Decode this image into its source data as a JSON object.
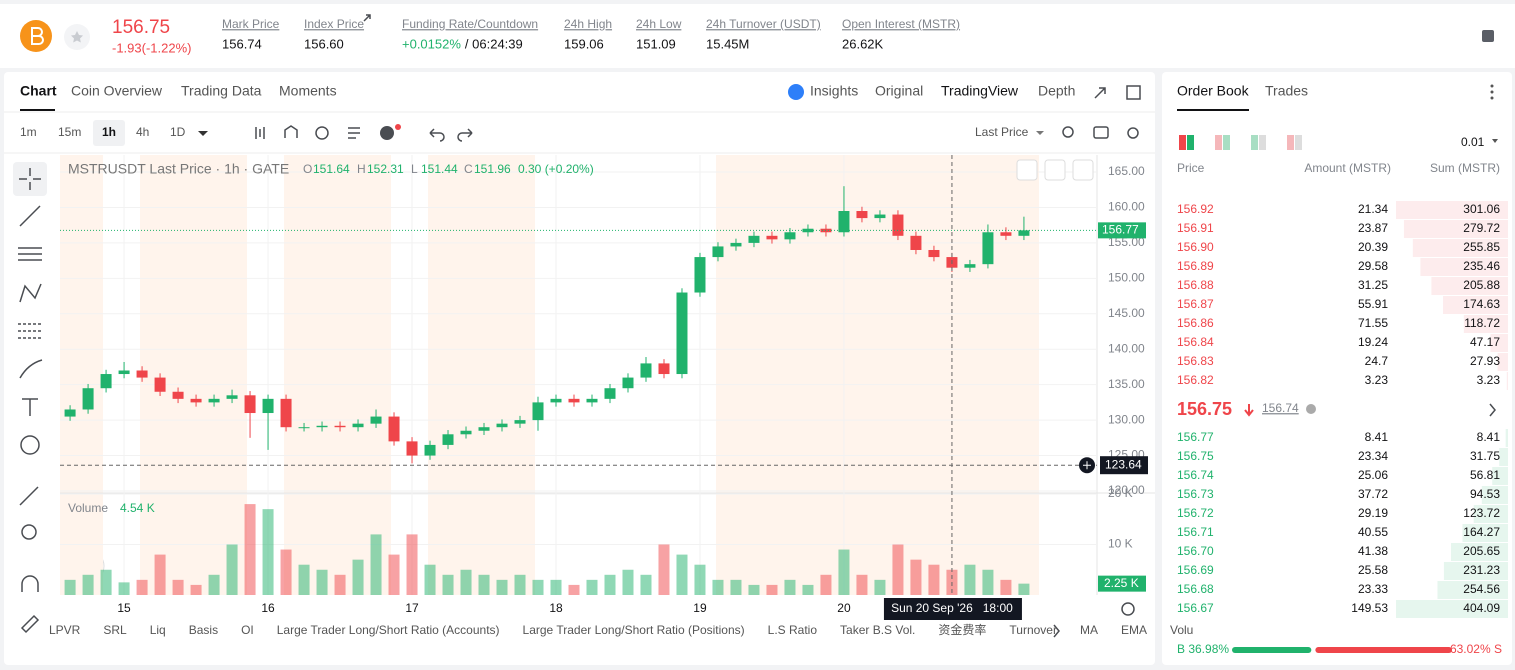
{
  "header": {
    "last_price": "156.75",
    "change": "-1.93(-1.22%)",
    "stats": [
      {
        "label": "Mark Price",
        "value": "156.74"
      },
      {
        "label": "Index Price",
        "value": "156.60"
      },
      {
        "label": "Funding Rate/Countdown",
        "value": "+0.0152%",
        "countdown": "/ 06:24:39"
      },
      {
        "label": "24h High",
        "value": "159.06"
      },
      {
        "label": "24h Low",
        "value": "151.09"
      },
      {
        "label": "24h Turnover (USDT)",
        "value": "15.45M"
      },
      {
        "label": "Open Interest (MSTR)",
        "value": "26.62K"
      }
    ]
  },
  "tabs": [
    "Chart",
    "Coin Overview",
    "Trading Data",
    "Moments"
  ],
  "view_tabs": [
    "Insights",
    "Original",
    "TradingView",
    "Depth"
  ],
  "intervals": [
    "1m",
    "15m",
    "1h",
    "4h",
    "1D"
  ],
  "price_source": "Last Price",
  "indicators": [
    "LPVR",
    "SRL",
    "Liq",
    "Basis",
    "OI",
    "Large Trader Long/Short Ratio (Accounts)",
    "Large Trader Long/Short Ratio (Positions)",
    "L.S Ratio",
    "Taker B.S Vol.",
    "资金费率",
    "Turnover",
    "MA",
    "EMA",
    "Volu"
  ],
  "chart_data": {
    "type": "candlestick",
    "title": "MSTRUSDT Last Price · 1h · GATE",
    "ohlc": [
      {
        "label": "O",
        "value": "151.64"
      },
      {
        "label": "H",
        "value": "152.31"
      },
      {
        "label": "L",
        "value": "151.44"
      },
      {
        "label": "C",
        "value": "151.96"
      }
    ],
    "ohlc_change": "0.30 (+0.20%)",
    "up_color": "#20b26c",
    "down_color": "#ef454a",
    "open": [
      130.5,
      131.5,
      134.5,
      136.5,
      137,
      136,
      134,
      133,
      132.5,
      133,
      133.5,
      131,
      133,
      129,
      129,
      129.2,
      129,
      129.5,
      130.5,
      127,
      125,
      126.5,
      128,
      128.5,
      129,
      129.5,
      130,
      132.5,
      133,
      132.5,
      133,
      134.5,
      136,
      138,
      136.5,
      148,
      153,
      154.5,
      155,
      156,
      155.5,
      156.5,
      157,
      156.5,
      159.5,
      158.5,
      159,
      156,
      154,
      153,
      151.5,
      152,
      156.5,
      156
    ],
    "high": [
      132.1,
      135.1,
      137.1,
      138.2,
      137.6,
      136.6,
      134.6,
      133.6,
      133.6,
      134.3,
      134.1,
      133.6,
      133.6,
      129.6,
      129.8,
      129.8,
      130.1,
      131.5,
      131.1,
      127.6,
      127.1,
      128.6,
      129.1,
      129.6,
      130.1,
      130.6,
      133.3,
      133.6,
      133.6,
      133.6,
      135.1,
      136.6,
      138.9,
      138.6,
      148.6,
      153.6,
      155.1,
      155.6,
      156.6,
      156.6,
      157.1,
      157.6,
      157.6,
      163,
      160.1,
      159.6,
      159.6,
      156.6,
      154.6,
      153.6,
      152.6,
      157.6,
      157.2,
      158.7
    ],
    "low": [
      129.9,
      130.9,
      133.9,
      135.9,
      135.4,
      133.4,
      132.4,
      131.9,
      131.9,
      132.4,
      127.5,
      125.8,
      128.4,
      128.4,
      128.4,
      128.4,
      128.4,
      128.9,
      126.4,
      123.9,
      124.4,
      125.9,
      127.4,
      127.9,
      128.4,
      128.9,
      128.5,
      131.9,
      131.9,
      131.9,
      132.4,
      133.9,
      135.4,
      135.9,
      135.9,
      147.4,
      152.4,
      153.9,
      154.4,
      154.9,
      154.9,
      155.9,
      155.9,
      155.9,
      157.9,
      157.9,
      155.4,
      153.4,
      152.4,
      150.9,
      150.9,
      151.4,
      155.4,
      155.4
    ],
    "close": [
      131.5,
      134.5,
      136.5,
      137,
      136,
      134,
      133,
      132.5,
      133,
      133.5,
      131,
      133,
      129,
      129,
      129.2,
      129,
      129.5,
      130.5,
      127,
      125,
      126.5,
      128,
      128.5,
      129,
      129.5,
      130,
      132.5,
      133,
      132.5,
      133,
      134.5,
      136,
      138,
      136.5,
      148,
      153,
      154.5,
      155,
      156,
      155.5,
      156.5,
      157,
      156.5,
      159.5,
      158.5,
      159,
      156,
      154,
      153,
      151.5,
      152,
      156.5,
      156,
      156.77
    ],
    "volume": [
      3,
      4,
      5,
      2.5,
      3,
      8,
      3,
      2,
      4,
      10,
      18,
      17,
      9,
      6,
      5,
      4,
      7,
      12,
      8,
      12,
      6,
      4,
      5,
      4,
      3,
      4,
      3,
      3,
      2,
      3,
      4,
      5,
      4,
      10,
      8,
      6,
      3,
      3,
      2,
      2,
      3,
      2,
      4,
      9,
      4,
      3,
      10,
      7,
      6,
      5,
      6,
      5,
      3,
      2.25
    ],
    "volume_title": "Volume",
    "volume_readout": "4.54 K",
    "volume_last_label": "2.25 K",
    "xlim": [
      -0.56,
      57.06
    ],
    "xticks": [
      {
        "value": 3,
        "label": "15"
      },
      {
        "value": 11,
        "label": "16"
      },
      {
        "value": 19,
        "label": "17"
      },
      {
        "value": 27,
        "label": "18"
      },
      {
        "value": 35,
        "label": "19"
      },
      {
        "value": 43,
        "label": "20"
      }
    ],
    "ylim": [
      120,
      167.4
    ],
    "yticks": [
      {
        "value": 120,
        "label": "120.00"
      },
      {
        "value": 125,
        "label": "125.00"
      },
      {
        "value": 130,
        "label": "130.00"
      },
      {
        "value": 135,
        "label": "135.00"
      },
      {
        "value": 140,
        "label": "140.00"
      },
      {
        "value": 145,
        "label": "145.00"
      },
      {
        "value": 150,
        "label": "150.00"
      },
      {
        "value": 155,
        "label": "155.00"
      },
      {
        "value": 160,
        "label": "160.00"
      },
      {
        "value": 165,
        "label": "165.00"
      }
    ],
    "volume_ylim": [
      0,
      20
    ],
    "volume_yticks": [
      {
        "value": 10,
        "label": "10 K"
      },
      {
        "value": 20,
        "label": "20 K"
      }
    ],
    "crosshair": {
      "x": 49,
      "label": "Sun 20 Sep '26   18:00",
      "y": 123.64
    },
    "grid": true
  },
  "order_book": {
    "tabs": [
      "Order Book",
      "Trades"
    ],
    "precision": "0.01",
    "columns": [
      "Price",
      "Amount (MSTR)",
      "Sum (MSTR)"
    ],
    "asks": [
      {
        "price": "156.92",
        "amount": 21.34,
        "sum": 301.06
      },
      {
        "price": "156.91",
        "amount": 23.87,
        "sum": 279.72
      },
      {
        "price": "156.90",
        "amount": 20.39,
        "sum": 255.85
      },
      {
        "price": "156.89",
        "amount": 29.58,
        "sum": 235.46
      },
      {
        "price": "156.88",
        "amount": 31.25,
        "sum": 205.88
      },
      {
        "price": "156.87",
        "amount": 55.91,
        "sum": 174.63
      },
      {
        "price": "156.86",
        "amount": 71.55,
        "sum": 118.72
      },
      {
        "price": "156.84",
        "amount": 19.24,
        "sum": 47.17
      },
      {
        "price": "156.83",
        "amount": 24.7,
        "sum": 27.93
      },
      {
        "price": "156.82",
        "amount": 3.23,
        "sum": 3.23
      }
    ],
    "mid_price": "156.75",
    "mark_price": "156.74",
    "bids": [
      {
        "price": "156.77",
        "amount": 8.41,
        "sum": 8.41
      },
      {
        "price": "156.75",
        "amount": 23.34,
        "sum": 31.75
      },
      {
        "price": "156.74",
        "amount": 25.06,
        "sum": 56.81
      },
      {
        "price": "156.73",
        "amount": 37.72,
        "sum": 94.53
      },
      {
        "price": "156.72",
        "amount": 29.19,
        "sum": 123.72
      },
      {
        "price": "156.71",
        "amount": 40.55,
        "sum": 164.27
      },
      {
        "price": "156.70",
        "amount": 41.38,
        "sum": 205.65
      },
      {
        "price": "156.69",
        "amount": 25.58,
        "sum": 231.23
      },
      {
        "price": "156.68",
        "amount": 23.33,
        "sum": 254.56
      },
      {
        "price": "156.67",
        "amount": 149.53,
        "sum": 404.09
      }
    ],
    "buy_ratio": {
      "value": 36.98,
      "label": "B 36.98%"
    },
    "sell_ratio": {
      "value": 63.02,
      "label": "63.02% S"
    }
  }
}
